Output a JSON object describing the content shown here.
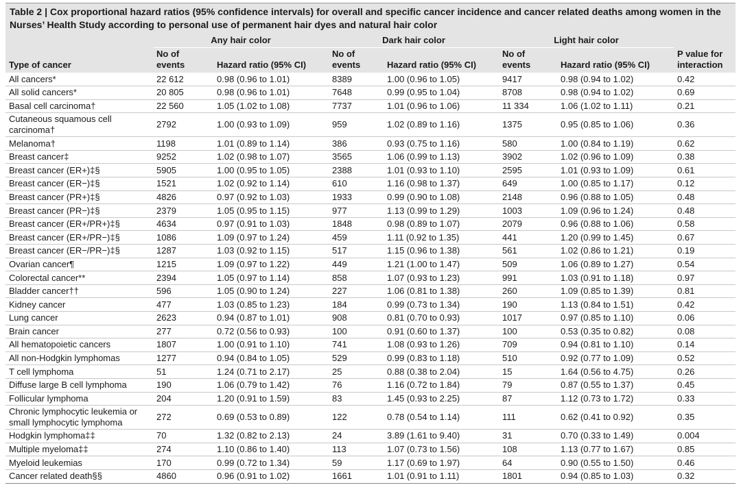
{
  "title": "Table 2 | Cox proportional hazard ratios (95% confidence intervals) for overall and specific cancer incidence and cancer related deaths among women in the Nurses’ Health Study according to personal use of permanent hair dyes and natural hair color",
  "table": {
    "groups": [
      "Any hair color",
      "Dark hair color",
      "Light hair color"
    ],
    "columns": [
      "Type of cancer",
      "No of events",
      "Hazard ratio (95% CI)",
      "No of events",
      "Hazard ratio (95% CI)",
      "No of events",
      "Hazard ratio (95% CI)",
      "P value for interaction"
    ],
    "rows": [
      [
        "All cancers*",
        "22 612",
        "0.98 (0.96 to 1.01)",
        "8389",
        "1.00 (0.96 to 1.05)",
        "9417",
        "0.98 (0.94 to 1.02)",
        "0.42"
      ],
      [
        "All solid cancers*",
        "20 805",
        "0.98 (0.96 to 1.01)",
        "7648",
        "0.99 (0.95 to 1.04)",
        "8708",
        "0.98 (0.94 to 1.02)",
        "0.69"
      ],
      [
        "Basal cell carcinoma†",
        "22 560",
        "1.05 (1.02 to 1.08)",
        "7737",
        "1.01 (0.96 to 1.06)",
        "11 334",
        "1.06 (1.02 to 1.11)",
        "0.21"
      ],
      [
        "Cutaneous squamous cell carcinoma†",
        "2792",
        "1.00 (0.93 to 1.09)",
        "959",
        "1.02 (0.89 to 1.16)",
        "1375",
        "0.95 (0.85 to 1.06)",
        "0.36"
      ],
      [
        "Melanoma†",
        "1198",
        "1.01 (0.89 to 1.14)",
        "386",
        "0.93 (0.75 to 1.16)",
        "580",
        "1.00 (0.84 to 1.19)",
        "0.62"
      ],
      [
        "Breast cancer‡",
        "9252",
        "1.02 (0.98 to 1.07)",
        "3565",
        "1.06 (0.99 to 1.13)",
        "3902",
        "1.02 (0.96 to 1.09)",
        "0.38"
      ],
      [
        "Breast cancer (ER+)‡§",
        "5905",
        "1.00 (0.95 to 1.05)",
        "2388",
        "1.01 (0.93 to 1.10)",
        "2595",
        "1.01 (0.93 to 1.09)",
        "0.61"
      ],
      [
        "Breast cancer (ER−)‡§",
        "1521",
        "1.02 (0.92 to 1.14)",
        "610",
        "1.16 (0.98 to 1.37)",
        "649",
        "1.00 (0.85 to 1.17)",
        "0.12"
      ],
      [
        "Breast cancer (PR+)‡§",
        "4826",
        "0.97 (0.92 to 1.03)",
        "1933",
        "0.99 (0.90 to 1.08)",
        "2148",
        "0.96 (0.88 to 1.05)",
        "0.48"
      ],
      [
        "Breast cancer (PR−)‡§",
        "2379",
        "1.05 (0.95 to 1.15)",
        "977",
        "1.13 (0.99 to 1.29)",
        "1003",
        "1.09 (0.96 to 1.24)",
        "0.48"
      ],
      [
        "Breast cancer (ER+/PR+)‡§",
        "4634",
        "0.97 (0.91 to 1.03)",
        "1848",
        "0.98 (0.89 to 1.07)",
        "2079",
        "0.96 (0.88 to 1.06)",
        "0.58"
      ],
      [
        "Breast cancer (ER+/PR−)‡§",
        "1086",
        "1.09 (0.97 to 1.24)",
        "459",
        "1.11 (0.92 to 1.35)",
        "441",
        "1.20 (0.99 to 1.45)",
        "0.67"
      ],
      [
        "Breast cancer (ER−/PR−)‡§",
        "1287",
        "1.03 (0.92 to 1.15)",
        "517",
        "1.15 (0.96 to 1.38)",
        "561",
        "1.02 (0.86 to 1.21)",
        "0.19"
      ],
      [
        "Ovarian cancer¶",
        "1215",
        "1.09 (0.97 to 1.22)",
        "449",
        "1.21 (1.00 to 1.47)",
        "509",
        "1.06 (0.89 to 1.27)",
        "0.54"
      ],
      [
        "Colorectal cancer**",
        "2394",
        "1.05 (0.97 to 1.14)",
        "858",
        "1.07 (0.93 to 1.23)",
        "991",
        "1.03 (0.91 to 1.18)",
        "0.97"
      ],
      [
        "Bladder cancer††",
        "596",
        "1.05 (0.90 to 1.24)",
        "227",
        "1.06 (0.81 to 1.38)",
        "260",
        "1.09 (0.85 to 1.39)",
        "0.81"
      ],
      [
        "Kidney cancer",
        "477",
        "1.03 (0.85 to 1.23)",
        "184",
        "0.99 (0.73 to 1.34)",
        "190",
        "1.13 (0.84 to 1.51)",
        "0.42"
      ],
      [
        "Lung cancer",
        "2623",
        "0.94 (0.87 to 1.01)",
        "908",
        "0.81 (0.70 to 0.93)",
        "1017",
        "0.97 (0.85 to 1.10)",
        "0.06"
      ],
      [
        "Brain cancer",
        "277",
        "0.72 (0.56 to 0.93)",
        "100",
        "0.91 (0.60 to 1.37)",
        "100",
        "0.53 (0.35 to 0.82)",
        "0.08"
      ],
      [
        "All hematopoietic cancers",
        "1807",
        "1.00 (0.91 to 1.10)",
        "741",
        "1.08 (0.93 to 1.26)",
        "709",
        "0.94 (0.81 to 1.10)",
        "0.14"
      ],
      [
        "All non-Hodgkin lymphomas",
        "1277",
        "0.94 (0.84 to 1.05)",
        "529",
        "0.99 (0.83 to 1.18)",
        "510",
        "0.92 (0.77 to 1.09)",
        "0.52"
      ],
      [
        "T cell lymphoma",
        "51",
        "1.24 (0.71 to 2.17)",
        "25",
        "0.88 (0.38 to 2.04)",
        "15",
        "1.64 (0.56 to 4.75)",
        "0.26"
      ],
      [
        "Diffuse large B cell lymphoma",
        "190",
        "1.06 (0.79 to 1.42)",
        "76",
        "1.16 (0.72 to 1.84)",
        "79",
        "0.87 (0.55 to 1.37)",
        "0.45"
      ],
      [
        "Follicular lymphoma",
        "204",
        "1.20 (0.91 to 1.59)",
        "83",
        "1.45 (0.93 to 2.25)",
        "87",
        "1.12 (0.73 to 1.72)",
        "0.33"
      ],
      [
        "Chronic lymphocytic leukemia or small lymphocytic lymphoma",
        "272",
        "0.69 (0.53 to 0.89)",
        "122",
        "0.78 (0.54 to 1.14)",
        "111",
        "0.62 (0.41 to 0.92)",
        "0.35"
      ],
      [
        "Hodgkin lymphoma‡‡",
        "70",
        "1.32 (0.82 to 2.13)",
        "24",
        "3.89 (1.61 to 9.40)",
        "31",
        "0.70 (0.33 to 1.49)",
        "0.004"
      ],
      [
        "Multiple myeloma‡‡",
        "274",
        "1.10 (0.86 to 1.40)",
        "113",
        "1.07 (0.73 to 1.56)",
        "108",
        "1.13 (0.77 to 1.67)",
        "0.85"
      ],
      [
        "Myeloid leukemias",
        "170",
        "0.99 (0.72 to 1.34)",
        "59",
        "1.17 (0.69 to 1.97)",
        "64",
        "0.90 (0.55 to 1.50)",
        "0.46"
      ],
      [
        "Cancer related death§§",
        "4860",
        "0.96 (0.91 to 1.02)",
        "1661",
        "1.01 (0.91 to 1.11)",
        "1801",
        "0.94 (0.85 to 1.03)",
        "0.32"
      ]
    ]
  }
}
